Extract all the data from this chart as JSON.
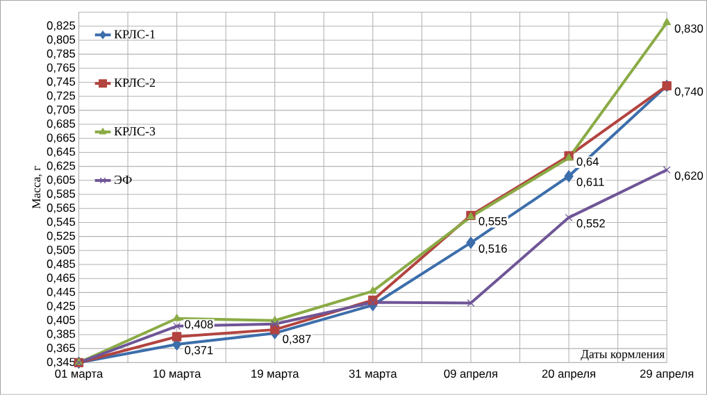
{
  "chart_data": {
    "type": "line",
    "xlabel": "Даты кормления",
    "ylabel": "Масса, г",
    "categories": [
      "01 марта",
      "10 марта",
      "19 марта",
      "31 марта",
      "09 апреля",
      "20 апреля",
      "29 апреля"
    ],
    "ylim": [
      0.345,
      0.845
    ],
    "yticks": [
      {
        "value": 0.345,
        "label": "0,345"
      },
      {
        "value": 0.365,
        "label": "0,365"
      },
      {
        "value": 0.385,
        "label": "0,385"
      },
      {
        "value": 0.405,
        "label": "0,405"
      },
      {
        "value": 0.425,
        "label": "0,425"
      },
      {
        "value": 0.445,
        "label": "0,445"
      },
      {
        "value": 0.465,
        "label": "0,465"
      },
      {
        "value": 0.485,
        "label": "0,485"
      },
      {
        "value": 0.505,
        "label": "0,505"
      },
      {
        "value": 0.525,
        "label": "0,525"
      },
      {
        "value": 0.545,
        "label": "0,545"
      },
      {
        "value": 0.565,
        "label": "0,565"
      },
      {
        "value": 0.585,
        "label": "0,585"
      },
      {
        "value": 0.605,
        "label": "0,605"
      },
      {
        "value": 0.625,
        "label": "0,625"
      },
      {
        "value": 0.645,
        "label": "0,645"
      },
      {
        "value": 0.665,
        "label": "0,665"
      },
      {
        "value": 0.685,
        "label": "0,685"
      },
      {
        "value": 0.705,
        "label": "0,705"
      },
      {
        "value": 0.725,
        "label": "0,725"
      },
      {
        "value": 0.745,
        "label": "0,745"
      },
      {
        "value": 0.765,
        "label": "0,765"
      },
      {
        "value": 0.785,
        "label": "0,785"
      },
      {
        "value": 0.805,
        "label": "0,805"
      },
      {
        "value": 0.825,
        "label": "0,825"
      },
      {
        "value": 0.845,
        "label": null
      }
    ],
    "grid": true,
    "legend": "left",
    "series": [
      {
        "name": "КРЛС-1",
        "color": "#3c6eab",
        "marker": "diamond",
        "values": [
          0.345,
          0.371,
          0.387,
          0.427,
          0.516,
          0.611,
          0.74
        ],
        "value_labels": [
          null,
          "0,371",
          "0,387",
          null,
          "0,516",
          "0,611",
          null
        ]
      },
      {
        "name": "КРЛС-2",
        "color": "#b2433f",
        "marker": "square",
        "values": [
          0.345,
          0.382,
          0.392,
          0.434,
          0.555,
          0.64,
          0.74
        ],
        "value_labels": [
          null,
          null,
          null,
          null,
          "0,555",
          "0,64",
          "0,740"
        ]
      },
      {
        "name": "КРЛС-3",
        "color": "#8aab45",
        "marker": "triangle",
        "values": [
          0.345,
          0.408,
          0.405,
          0.447,
          0.553,
          0.637,
          0.83
        ],
        "value_labels": [
          null,
          "0,408",
          null,
          null,
          null,
          null,
          "0,830"
        ]
      },
      {
        "name": "ЭФ",
        "color": "#6f5597",
        "marker": "cross",
        "values": [
          0.345,
          0.397,
          0.4,
          0.431,
          0.43,
          0.552,
          0.62
        ],
        "value_labels": [
          null,
          null,
          null,
          null,
          null,
          "0,552",
          "0,620"
        ]
      }
    ]
  }
}
